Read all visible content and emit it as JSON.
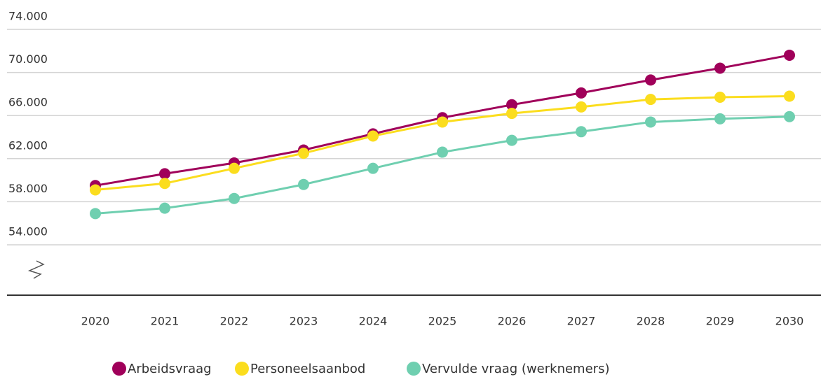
{
  "chart_data": {
    "type": "line",
    "categories": [
      "2020",
      "2021",
      "2022",
      "2023",
      "2024",
      "2025",
      "2026",
      "2027",
      "2028",
      "2029",
      "2030"
    ],
    "series": [
      {
        "name": "Arbeidsvraag",
        "color": "#a0005a",
        "values": [
          59500,
          60600,
          61600,
          62800,
          64300,
          65800,
          67000,
          68100,
          69300,
          70400,
          71600
        ]
      },
      {
        "name": "Personeelsaanbod",
        "color": "#fbdd1e",
        "values": [
          59100,
          59700,
          61100,
          62500,
          64100,
          65400,
          66200,
          66800,
          67500,
          67700,
          67800
        ]
      },
      {
        "name": "Vervulde vraag (werknemers)",
        "color": "#6fcfb0",
        "values": [
          56900,
          57400,
          58300,
          59600,
          61100,
          62600,
          63700,
          64500,
          65400,
          65700,
          65900
        ]
      }
    ],
    "ylim": [
      54000,
      74000
    ],
    "yticks": [
      {
        "value": 54000,
        "label": "54.000"
      },
      {
        "value": 58000,
        "label": "58.000"
      },
      {
        "value": 62000,
        "label": "62.000"
      },
      {
        "value": 66000,
        "label": "66.000"
      },
      {
        "value": 70000,
        "label": "70.000"
      },
      {
        "value": 74000,
        "label": "74.000"
      }
    ],
    "grid": true
  }
}
